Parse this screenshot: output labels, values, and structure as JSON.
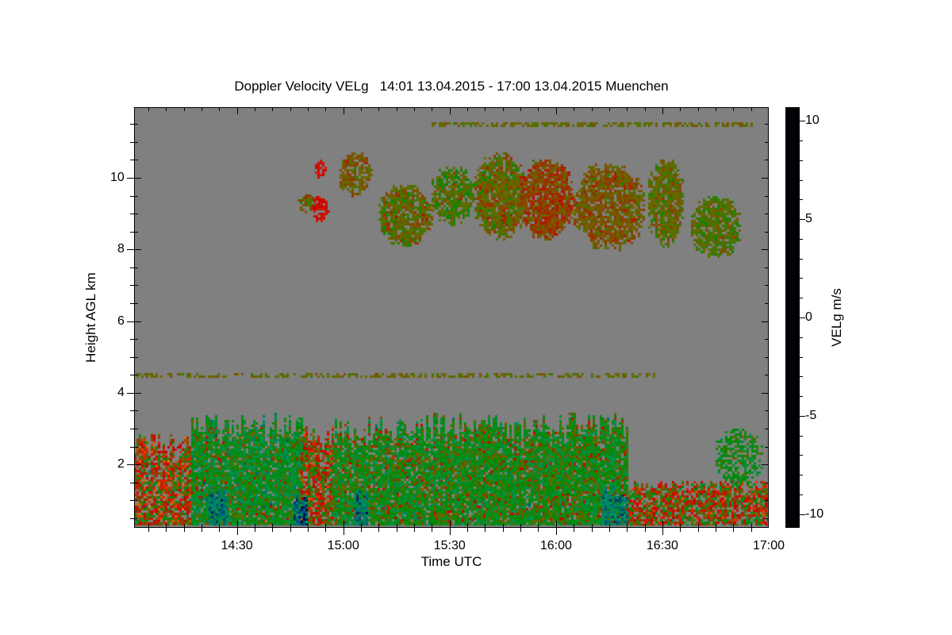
{
  "chart_data": {
    "type": "heatmap",
    "title": "Doppler Velocity VELg   14:01 13.04.2015 - 17:00 13.04.2015 Muenchen",
    "xlabel": "Time UTC",
    "ylabel": "Height AGL km",
    "xlim_minutes_after_1400": [
      1,
      180
    ],
    "ylim": [
      0.23,
      11.97
    ],
    "x_ticks": [
      {
        "min": 30,
        "label": "14:30"
      },
      {
        "min": 60,
        "label": "15:00"
      },
      {
        "min": 90,
        "label": "15:30"
      },
      {
        "min": 120,
        "label": "16:00"
      },
      {
        "min": 150,
        "label": "16:30"
      },
      {
        "min": 180,
        "label": "17:00"
      }
    ],
    "x_minor_step_min": 5,
    "y_ticks": [
      {
        "v": 2,
        "label": "2"
      },
      {
        "v": 4,
        "label": "4"
      },
      {
        "v": 6,
        "label": "6"
      },
      {
        "v": 8,
        "label": "8"
      },
      {
        "v": 10,
        "label": "10"
      }
    ],
    "y_minor_step": 0.5,
    "colorbar": {
      "label": "VELg m/s",
      "range": [
        -10.7,
        10.7
      ],
      "ticks": [
        {
          "v": 10,
          "label": "10"
        },
        {
          "v": 5,
          "label": "5"
        },
        {
          "v": 0,
          "label": "0"
        },
        {
          "v": -5,
          "label": "-5"
        },
        {
          "v": -10,
          "label": "-10"
        }
      ],
      "colormap": [
        [
          -10.7,
          "#000005"
        ],
        [
          -8,
          "#000050"
        ],
        [
          -6.5,
          "#004a70"
        ],
        [
          -4.5,
          "#00906a"
        ],
        [
          -3,
          "#009030"
        ],
        [
          -1.2,
          "#008a00"
        ],
        [
          0,
          "#686a00"
        ],
        [
          0.8,
          "#8a4000"
        ],
        [
          1.8,
          "#c80000"
        ],
        [
          4,
          "#d83008"
        ],
        [
          7,
          "#ee8000"
        ],
        [
          10.7,
          "#ffff00"
        ]
      ]
    },
    "no_data_color": "#808080",
    "echo_regions": [
      {
        "t": [
          1,
          17
        ],
        "h": [
          0.25,
          2.9
        ],
        "v": 1.2,
        "spread": 2.2,
        "fill": 0.8
      },
      {
        "t": [
          17,
          48
        ],
        "h": [
          0.25,
          3.5
        ],
        "v": -2.0,
        "spread": 1.6,
        "fill": 0.92
      },
      {
        "t": [
          48,
          57
        ],
        "h": [
          0.25,
          3.2
        ],
        "v": 1.0,
        "spread": 2.0,
        "fill": 0.85
      },
      {
        "t": [
          57,
          82
        ],
        "h": [
          0.25,
          3.4
        ],
        "v": -1.5,
        "spread": 1.6,
        "fill": 0.9
      },
      {
        "t": [
          82,
          140
        ],
        "h": [
          0.25,
          3.5
        ],
        "v": -1.4,
        "spread": 1.5,
        "fill": 0.93
      },
      {
        "t": [
          140,
          180
        ],
        "h": [
          0.25,
          1.6
        ],
        "v": 0.8,
        "spread": 2.0,
        "fill": 0.8
      },
      {
        "t": [
          165,
          178
        ],
        "h": [
          1.4,
          3.0
        ],
        "v": -1.6,
        "spread": 1.0,
        "fill": 0.6
      },
      {
        "t": [
          22,
          27
        ],
        "h": [
          0.25,
          1.5
        ],
        "v": -5.0,
        "spread": 1.2,
        "fill": 0.9
      },
      {
        "t": [
          46,
          50
        ],
        "h": [
          0.25,
          1.3
        ],
        "v": -6.0,
        "spread": 1.0,
        "fill": 0.9
      },
      {
        "t": [
          63,
          67
        ],
        "h": [
          0.25,
          1.4
        ],
        "v": -5.0,
        "spread": 1.2,
        "fill": 0.9
      },
      {
        "t": [
          133,
          140
        ],
        "h": [
          0.25,
          1.5
        ],
        "v": -5.0,
        "spread": 1.2,
        "fill": 0.9
      },
      {
        "t": [
          47,
          52
        ],
        "h": [
          9.0,
          9.6
        ],
        "v": 0.0,
        "spread": 0.6,
        "fill": 0.7
      },
      {
        "t": [
          51,
          56
        ],
        "h": [
          8.8,
          9.5
        ],
        "v": 2.5,
        "spread": 0.4,
        "fill": 0.8
      },
      {
        "t": [
          52,
          55
        ],
        "h": [
          10.0,
          10.5
        ],
        "v": 2.5,
        "spread": 0.4,
        "fill": 0.8
      },
      {
        "t": [
          59,
          68
        ],
        "h": [
          9.5,
          10.7
        ],
        "v": 0.3,
        "spread": 0.5,
        "fill": 0.85
      },
      {
        "t": [
          70,
          85
        ],
        "h": [
          8.1,
          9.8
        ],
        "v": 0.0,
        "spread": 0.6,
        "fill": 0.85
      },
      {
        "t": [
          85,
          97
        ],
        "h": [
          8.7,
          10.3
        ],
        "v": -0.4,
        "spread": 0.6,
        "fill": 0.85
      },
      {
        "t": [
          97,
          112
        ],
        "h": [
          8.3,
          10.7
        ],
        "v": 0.1,
        "spread": 0.6,
        "fill": 0.9
      },
      {
        "t": [
          110,
          125
        ],
        "h": [
          8.3,
          10.5
        ],
        "v": 0.8,
        "spread": 0.5,
        "fill": 0.9
      },
      {
        "t": [
          125,
          145
        ],
        "h": [
          8.0,
          10.4
        ],
        "v": 0.4,
        "spread": 0.5,
        "fill": 0.85
      },
      {
        "t": [
          146,
          156
        ],
        "h": [
          8.1,
          10.5
        ],
        "v": 0.0,
        "spread": 0.5,
        "fill": 0.85
      },
      {
        "t": [
          158,
          172
        ],
        "h": [
          7.8,
          9.5
        ],
        "v": -0.2,
        "spread": 0.5,
        "fill": 0.85
      },
      {
        "t": [
          1,
          150
        ],
        "h": [
          4.45,
          4.55
        ],
        "v": 0.0,
        "spread": 0.3,
        "fill": 0.45
      },
      {
        "t": [
          85,
          175
        ],
        "h": [
          11.45,
          11.55
        ],
        "v": 0.0,
        "spread": 0.3,
        "fill": 0.6
      }
    ]
  }
}
